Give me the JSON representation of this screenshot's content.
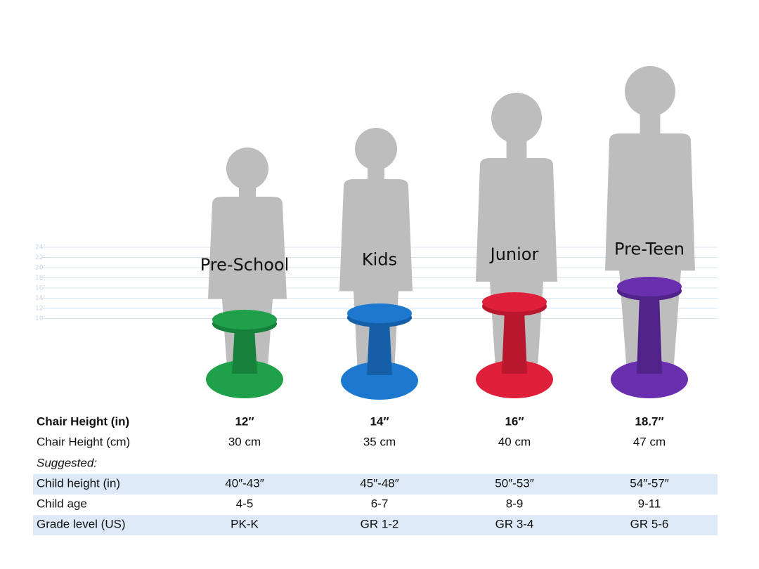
{
  "ruler": {
    "labels": [
      "24″",
      "22″",
      "20″",
      "18″",
      "16″",
      "14″",
      "12″",
      "10″"
    ]
  },
  "products": [
    {
      "name": "Pre-School"
    },
    {
      "name": "Kids"
    },
    {
      "name": "Junior"
    },
    {
      "name": "Pre-Teen"
    }
  ],
  "table": {
    "rows": [
      {
        "label": "Chair Height (in)",
        "cells": [
          "12″",
          "14″",
          "16″",
          "18.7″"
        ]
      },
      {
        "label": "Chair Height (cm)",
        "cells": [
          "30 cm",
          "35 cm",
          "40 cm",
          "47 cm"
        ]
      },
      {
        "label": "Suggested:",
        "cells": []
      },
      {
        "label": "Child height (in)",
        "cells": [
          "40″-43″",
          "45″-48″",
          "50″-53″",
          "54″-57″"
        ]
      },
      {
        "label": "Child age",
        "cells": [
          "4-5",
          "6-7",
          "8-9",
          "9-11"
        ]
      },
      {
        "label": "Grade level (US)",
        "cells": [
          "PK-K",
          "GR 1-2",
          "GR 3-4",
          "GR 5-6"
        ]
      }
    ]
  }
}
